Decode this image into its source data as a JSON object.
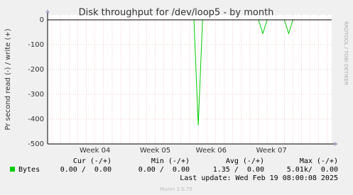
{
  "chart_data": {
    "type": "line",
    "title": "Disk throughput for /dev/loop5 - by month",
    "y_label": "Pr second read (-) / write (+)",
    "categories": [
      null,
      null,
      null,
      null,
      null,
      null,
      null,
      null,
      null,
      null,
      null,
      "Week 04",
      null,
      null,
      null,
      null,
      null,
      null,
      null,
      null,
      null,
      null,
      null,
      null,
      null,
      "Week 05",
      null,
      null,
      null,
      null,
      null,
      null,
      null,
      null,
      null,
      null,
      null,
      null,
      "Week 06",
      null,
      null,
      null,
      null,
      null,
      null,
      null,
      null,
      null,
      null,
      null,
      null,
      null,
      "Week 07",
      null,
      null,
      null,
      null,
      null,
      null,
      null,
      null,
      null,
      null,
      null,
      null,
      null,
      null
    ],
    "series": [
      {
        "name": "Bytes",
        "color": "#00cc00",
        "values": [
          0,
          0,
          0,
          0,
          0,
          0,
          0,
          0,
          0,
          0,
          0,
          0,
          0,
          0,
          0,
          0,
          0,
          0,
          0,
          0,
          0,
          0,
          0,
          0,
          0,
          0,
          0,
          0,
          0,
          0,
          0,
          0,
          0,
          0,
          0,
          -425,
          0,
          0,
          0,
          0,
          0,
          0,
          0,
          0,
          0,
          0,
          0,
          0,
          0,
          0,
          -55,
          0,
          0,
          0,
          0,
          0,
          -55,
          0,
          0,
          0,
          0,
          0,
          0,
          0,
          0,
          0,
          0
        ]
      }
    ],
    "ylim": [
      -500,
      20
    ],
    "yticks": [
      0,
      -100,
      -200,
      -300,
      -400,
      -500
    ],
    "grid": true,
    "stats": {
      "columns": [
        "Cur (-/+)",
        "Min (-/+)",
        "Avg (-/+)",
        "Max (-/+)"
      ],
      "rows": [
        [
          "0.00 /  0.00",
          "0.00 /  0.00",
          "1.35 /  0.00",
          "5.01k/  0.00"
        ]
      ]
    },
    "last_update": "Last update: Wed Feb 19 08:00:08 2025",
    "footer": "Munin 2.0.75",
    "side_text": "RRDTOOL / TOBI OETIKER"
  }
}
